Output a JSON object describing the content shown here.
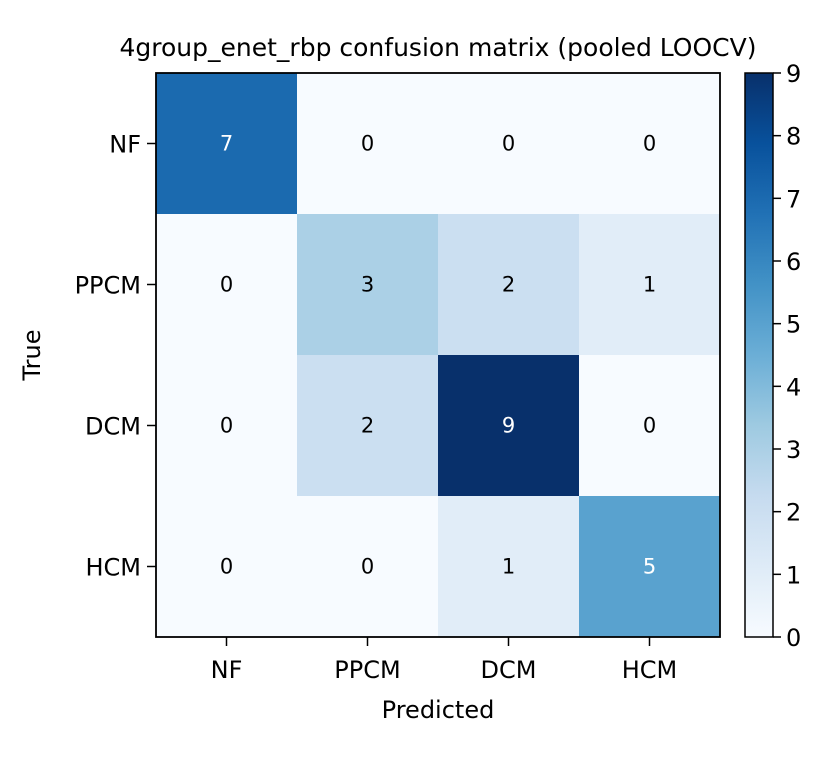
{
  "chart_data": {
    "type": "heatmap",
    "title": "4group_enet_rbp confusion matrix (pooled LOOCV)",
    "xlabel": "Predicted",
    "ylabel": "True",
    "x_categories": [
      "NF",
      "PPCM",
      "DCM",
      "HCM"
    ],
    "y_categories": [
      "NF",
      "PPCM",
      "DCM",
      "HCM"
    ],
    "values": [
      [
        7,
        0,
        0,
        0
      ],
      [
        0,
        3,
        2,
        1
      ],
      [
        0,
        2,
        9,
        0
      ],
      [
        0,
        0,
        1,
        5
      ]
    ],
    "colorbar": {
      "min": 0,
      "max": 9,
      "ticks": [
        "0",
        "1",
        "2",
        "3",
        "4",
        "5",
        "6",
        "7",
        "8",
        "9"
      ],
      "colormap": "Blues"
    },
    "grid": false
  }
}
